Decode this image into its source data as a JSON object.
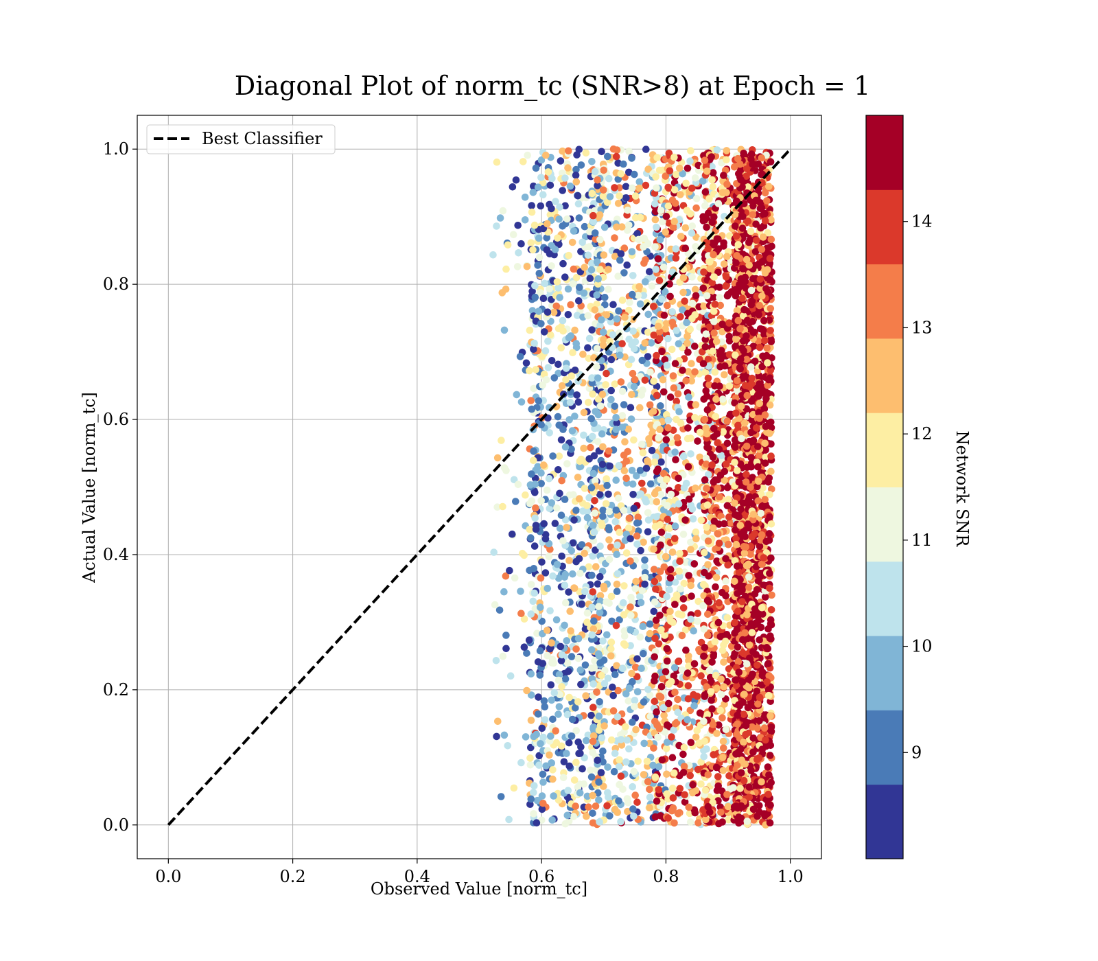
{
  "chart_data": {
    "type": "scatter",
    "title": "Diagonal Plot of norm_tc (SNR>8) at Epoch = 1",
    "xlabel": "Observed Value [norm_tc]",
    "ylabel": "Actual Value [norm_tc]",
    "xlim": [
      -0.05,
      1.05
    ],
    "ylim": [
      -0.05,
      1.05
    ],
    "xticks": [
      0.0,
      0.2,
      0.4,
      0.6,
      0.8,
      1.0
    ],
    "xtick_labels": [
      "0.0",
      "0.2",
      "0.4",
      "0.6",
      "0.8",
      "1.0"
    ],
    "yticks": [
      0.0,
      0.2,
      0.4,
      0.6,
      0.8,
      1.0
    ],
    "ytick_labels": [
      "0.0",
      "0.2",
      "0.4",
      "0.6",
      "0.8",
      "1.0"
    ],
    "grid": true,
    "legend": {
      "position": "upper-left",
      "entries": [
        {
          "label": "Best Classifier",
          "style": "dashed",
          "color": "#000000"
        }
      ]
    },
    "reference_line": {
      "name": "Best Classifier",
      "x": [
        0.0,
        1.0
      ],
      "y": [
        0.0,
        1.0
      ],
      "style": "dashed",
      "color": "#000000"
    },
    "scatter_summary": {
      "x_range": [
        0.52,
        0.97
      ],
      "y_range": [
        0.0,
        1.0
      ],
      "trend": "higher SNR points concentrate at larger observed values (0.9–0.97); lower SNR points spread over 0.55–0.9",
      "density_bands": [
        {
          "x_min": 0.52,
          "x_max": 0.6,
          "snr_bias": 10.0,
          "density": "sparse"
        },
        {
          "x_min": 0.58,
          "x_max": 0.7,
          "snr_bias": 10.2,
          "density": "dense"
        },
        {
          "x_min": 0.68,
          "x_max": 0.8,
          "snr_bias": 11.0,
          "density": "dense"
        },
        {
          "x_min": 0.78,
          "x_max": 0.88,
          "snr_bias": 12.6,
          "density": "dense"
        },
        {
          "x_min": 0.86,
          "x_max": 0.93,
          "snr_bias": 13.6,
          "density": "dense"
        },
        {
          "x_min": 0.91,
          "x_max": 0.97,
          "snr_bias": 14.5,
          "density": "very dense"
        }
      ]
    },
    "colorbar": {
      "label": "Network SNR",
      "range": [
        8,
        15
      ],
      "levels": [
        {
          "from": 8.0,
          "to": 8.7,
          "color": "#313695"
        },
        {
          "from": 8.7,
          "to": 9.4,
          "color": "#4a7bb7"
        },
        {
          "from": 9.4,
          "to": 10.1,
          "color": "#80b5d6"
        },
        {
          "from": 10.1,
          "to": 10.8,
          "color": "#bee3ec"
        },
        {
          "from": 10.8,
          "to": 11.5,
          "color": "#eef7e0"
        },
        {
          "from": 11.5,
          "to": 12.2,
          "color": "#fdeea3"
        },
        {
          "from": 12.2,
          "to": 12.9,
          "color": "#fdbe6f"
        },
        {
          "from": 12.9,
          "to": 13.6,
          "color": "#f47d4a"
        },
        {
          "from": 13.6,
          "to": 14.3,
          "color": "#db392b"
        },
        {
          "from": 14.3,
          "to": 15.0,
          "color": "#a50026"
        }
      ],
      "ticks": [
        9,
        10,
        11,
        12,
        13,
        14
      ],
      "tick_labels": [
        "9",
        "10",
        "11",
        "12",
        "13",
        "14"
      ]
    }
  }
}
